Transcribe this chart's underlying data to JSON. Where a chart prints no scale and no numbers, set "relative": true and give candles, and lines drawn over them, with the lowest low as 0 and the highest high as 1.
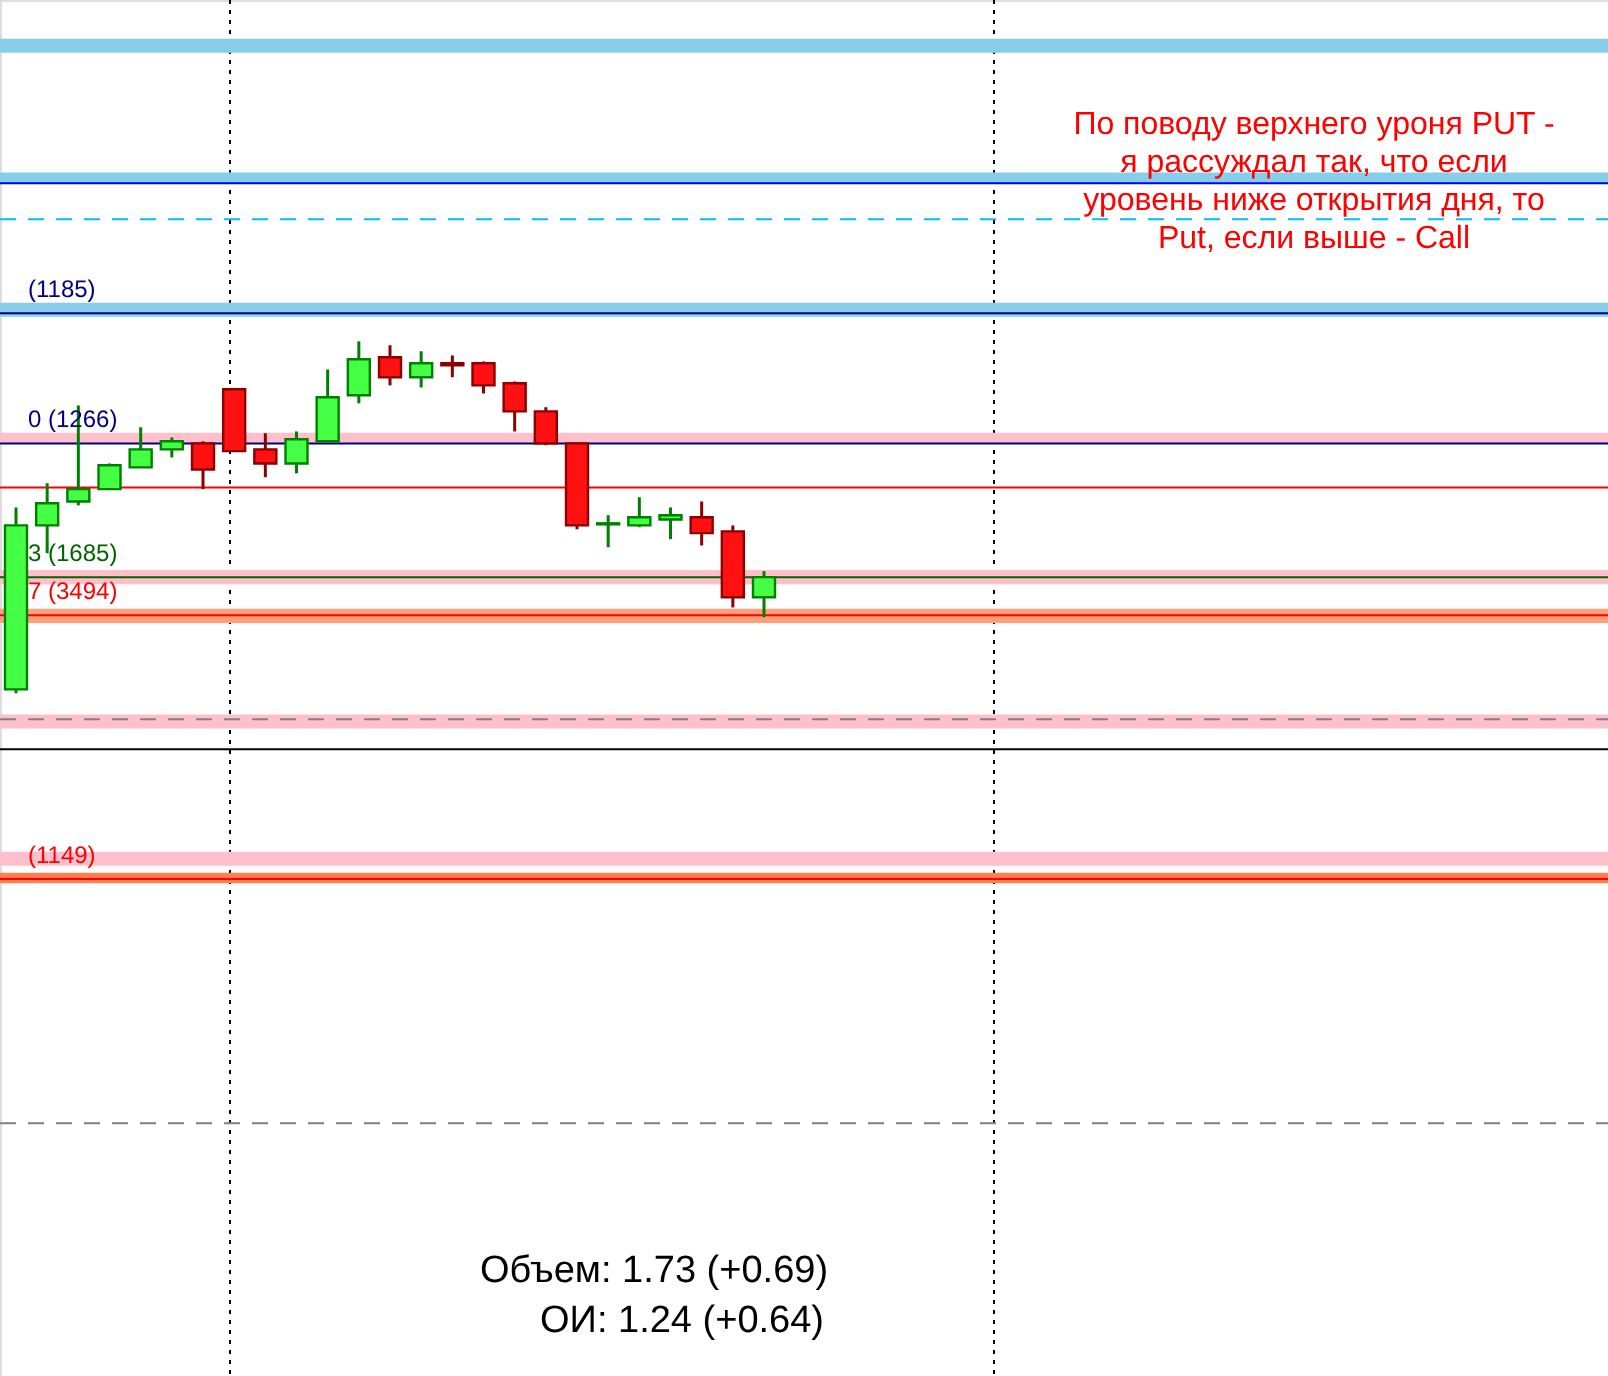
{
  "chart_data": {
    "type": "candlestick",
    "relative": true,
    "categories": [
      null,
      null,
      null,
      null,
      null,
      null,
      null,
      null,
      null,
      null,
      null,
      null,
      null,
      null,
      null,
      null,
      null,
      null,
      null,
      null,
      null,
      null,
      null,
      null,
      null
    ],
    "ylim": [
      -1.94,
      1.97
    ],
    "ohlc": [
      [
        0.011,
        0.528,
        0.0,
        0.477
      ],
      [
        0.477,
        0.597,
        0.398,
        0.54
      ],
      [
        0.545,
        0.818,
        0.534,
        0.58
      ],
      [
        0.58,
        0.653,
        0.58,
        0.648
      ],
      [
        0.642,
        0.756,
        0.642,
        0.693
      ],
      [
        0.693,
        0.727,
        0.67,
        0.716
      ],
      [
        0.71,
        0.716,
        0.58,
        0.636
      ],
      [
        0.864,
        0.864,
        0.688,
        0.688
      ],
      [
        0.693,
        0.739,
        0.614,
        0.653
      ],
      [
        0.653,
        0.744,
        0.625,
        0.722
      ],
      [
        0.716,
        0.92,
        0.716,
        0.841
      ],
      [
        0.847,
        1.0,
        0.824,
        0.949
      ],
      [
        0.955,
        0.989,
        0.875,
        0.898
      ],
      [
        0.898,
        0.972,
        0.869,
        0.938
      ],
      [
        0.938,
        0.96,
        0.898,
        0.932
      ],
      [
        0.938,
        0.943,
        0.852,
        0.875
      ],
      [
        0.881,
        0.886,
        0.744,
        0.801
      ],
      [
        0.801,
        0.813,
        0.705,
        0.71
      ],
      [
        0.71,
        0.71,
        0.466,
        0.477
      ],
      [
        0.48,
        0.506,
        0.415,
        0.483
      ],
      [
        0.477,
        0.557,
        0.472,
        0.5
      ],
      [
        0.494,
        0.528,
        0.438,
        0.506
      ],
      [
        0.5,
        0.545,
        0.42,
        0.455
      ],
      [
        0.46,
        0.477,
        0.244,
        0.273
      ],
      [
        0.273,
        0.347,
        0.216,
        0.33
      ]
    ],
    "bands": [
      {
        "axis": "y",
        "from": 1.82,
        "to": 1.86,
        "color": "#87ceeb"
      },
      {
        "axis": "y",
        "from": 1.45,
        "to": 1.48,
        "color": "#87ceeb"
      },
      {
        "axis": "y",
        "from": 1.07,
        "to": 1.11,
        "color": "#87ceeb"
      },
      {
        "axis": "y",
        "from": 0.71,
        "to": 0.74,
        "color": "#ffc0cb"
      },
      {
        "axis": "y",
        "from": 0.31,
        "to": 0.35,
        "color": "#ffc0cb"
      },
      {
        "axis": "y",
        "from": 0.2,
        "to": 0.24,
        "color": "#ffa07a"
      },
      {
        "axis": "y",
        "from": -0.1,
        "to": -0.06,
        "color": "#ffc0cb"
      },
      {
        "axis": "y",
        "from": -0.49,
        "to": -0.45,
        "color": "#ffc0cb"
      },
      {
        "axis": "y",
        "from": -0.54,
        "to": -0.51,
        "color": "#ff7f50"
      }
    ],
    "ref_lines": [
      {
        "axis": "y",
        "value": 1.449,
        "color": "#0000ff",
        "line_style": "solid"
      },
      {
        "axis": "y",
        "value": 1.347,
        "color": "#00bfff",
        "line_style": "dashed"
      },
      {
        "axis": "y",
        "value": 1.08,
        "color": "#000080",
        "line_style": "solid"
      },
      {
        "axis": "y",
        "value": 0.71,
        "color": "#000080",
        "line_style": "solid"
      },
      {
        "axis": "y",
        "value": 0.585,
        "color": "#ff0000",
        "line_style": "solid"
      },
      {
        "axis": "y",
        "value": 0.33,
        "color": "#006400",
        "line_style": "solid"
      },
      {
        "axis": "y",
        "value": 0.222,
        "color": "#ff0000",
        "line_style": "solid"
      },
      {
        "axis": "y",
        "value": -0.074,
        "color": "#808080",
        "line_style": "dashed"
      },
      {
        "axis": "y",
        "value": -0.159,
        "color": "#000000",
        "line_style": "solid"
      },
      {
        "axis": "y",
        "value": -0.528,
        "color": "#ff0000",
        "line_style": "solid"
      },
      {
        "axis": "y",
        "value": -1.222,
        "color": "#808080",
        "line_style": "dashed"
      }
    ],
    "annotations": [
      "По поводу верхнего уроня PUT -\nя рассуждал так, что если\nуровень ниже открытия дня, то\nPut, если выше - Call",
      "Объем: 1.73 (+0.69)",
      "ОИ: 1.24 (+0.64)",
      {
        "text": "(1185)",
        "y": 1.08
      },
      {
        "text": "0 (1266)",
        "y": 0.71
      },
      {
        "text": "3 (1685)",
        "y": 0.33
      },
      {
        "text": "7 (3494)",
        "y": 0.222
      },
      {
        "text": "(1149)",
        "y": -0.528
      }
    ]
  }
}
